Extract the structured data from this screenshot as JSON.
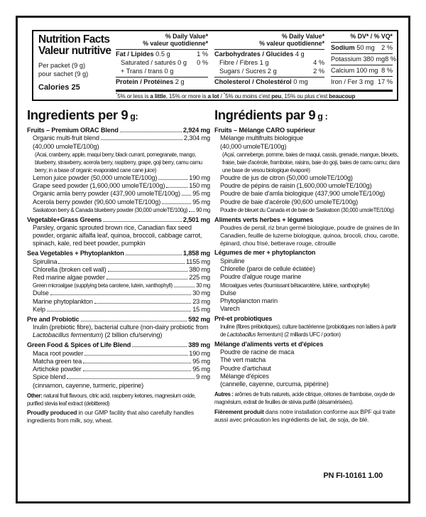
{
  "nutrition_facts": {
    "title_en": "Nutrition Facts",
    "title_fr": "Valeur nutritive",
    "serving_en": "Per packet (9 g)",
    "serving_fr": "pour sachet (9 g)",
    "calories": "Calories 25",
    "dv_header_line1": "% Daily Value*",
    "dv_header_line2": "% valeur quotidienne*",
    "dv_short_header": "% DV* / % VQ*",
    "fat_column": [
      {
        "b": "Fat / Lipides",
        "r": " 0.5 g",
        "v": "1 %"
      },
      {
        "r": "Saturated / saturés 0 g",
        "v": "0 %",
        "indent": 1
      },
      {
        "r": "+ Trans / trans 0 g",
        "indent": 1
      },
      {
        "rule": true
      },
      {
        "b": "Protein / Protéines",
        "r": " 2 g"
      }
    ],
    "carb_column": [
      {
        "b": "Carbohydrates / Glucides",
        "r": " 4 g"
      },
      {
        "r": "Fibre / Fibres 1 g",
        "v": "4 %",
        "indent": 1
      },
      {
        "r": "Sugars / Sucres 2 g",
        "v": "2 %",
        "indent": 1
      },
      {
        "rule": true
      },
      {
        "b": "Cholesterol / Cholestérol",
        "r": " 0 mg"
      }
    ],
    "mineral_column": [
      {
        "b": "Sodium",
        "r": " 50 mg",
        "v": "2 %"
      },
      {
        "rule": true
      },
      {
        "r": "Potassium 380 mg",
        "v": "8 %"
      },
      {
        "rule": true
      },
      {
        "r": "Calcium 100 mg",
        "v": "8 %"
      },
      {
        "rule": true
      },
      {
        "r": "Iron / Fer 3 mg",
        "v": "17 %"
      }
    ],
    "footnote_segments": [
      {
        "sup": true,
        "text": "*"
      },
      {
        "text": "5% or less is "
      },
      {
        "bold": true,
        "text": "a little"
      },
      {
        "text": ", 15% or more is "
      },
      {
        "bold": true,
        "text": "a lot"
      },
      {
        "text": " / "
      },
      {
        "sup": true,
        "text": "*"
      },
      {
        "text": "5% ou moins c'est "
      },
      {
        "bold": true,
        "text": "peu"
      },
      {
        "text": ", 15% ou plus c'est "
      },
      {
        "bold": true,
        "text": "beaucoup"
      }
    ]
  },
  "ingredients_en": {
    "title_prefix": "Ingredients per 9",
    "title_unit": "g:",
    "rows": [
      {
        "t": "dot",
        "bold": true,
        "label": "Fruits – Premium ORAC Blend",
        "value": "2,924 mg"
      },
      {
        "t": "dot",
        "indent": 1,
        "label": "Organic multi-fruit blend",
        "value": "2,304 mg"
      },
      {
        "t": "text",
        "indent": 1,
        "text": "(40,000 umoleTE/100g)"
      },
      {
        "t": "text",
        "indent": 2,
        "size": "xs",
        "text": "(Acai, cranberry, apple, maqui berry, black currant, pomegranate, mango, blueberry, strawberry, acerola berry, raspberry, grape, goji berry, camu camu berry; in a base of organic evaporated cane cane juice)"
      },
      {
        "t": "dot",
        "indent": 1,
        "label": "Lemon juice powder (50,000 umoleTE/100g)",
        "value": "190 mg"
      },
      {
        "t": "dot",
        "indent": 1,
        "label": "Grape seed powder (1,600,000 umoleTE/100g)",
        "value": "150 mg"
      },
      {
        "t": "dot",
        "indent": 1,
        "label": "Organic amla berry powder (437,900 umoleTE/100g)",
        "value": "95 mg"
      },
      {
        "t": "dot",
        "indent": 1,
        "label": "Acerola berry powder (90,600 umoleTE/100g)",
        "value": "95 mg"
      },
      {
        "t": "dot",
        "indent": 1,
        "size": "xs",
        "label": "Saskatoon berry & Canada blueberry powder (30,000 umoleTE/100g)",
        "value": "90 mg"
      },
      {
        "t": "dot",
        "bold": true,
        "gap": true,
        "label": "Vegetable+Grass Greens",
        "value": "2,501 mg"
      },
      {
        "t": "text",
        "indent": 1,
        "text": "Parsley, organic sprouted brown rice, Canadian flax seed powder, organic alfalfa leaf, quinoa, broccoli, cabbage carrot, spinach, kale, red beet powder, pumpkin"
      },
      {
        "t": "dot",
        "bold": true,
        "gap": true,
        "label": "Sea Vegetables + Phytoplankton",
        "value": "1,858 mg"
      },
      {
        "t": "dot",
        "indent": 1,
        "label": "Spirulina",
        "value": "1155 mg"
      },
      {
        "t": "dot",
        "indent": 1,
        "label": "Chlorella (broken cell wall)",
        "value": "380 mg"
      },
      {
        "t": "dot",
        "indent": 1,
        "label": "Red marine algae powder",
        "value": "225 mg"
      },
      {
        "t": "dot",
        "indent": 1,
        "size": "xs",
        "label": "Green microalgae (supplying beta carotene, lutein, xanthophyll)",
        "value": "30 mg"
      },
      {
        "t": "dot",
        "indent": 1,
        "label": "Dulse",
        "value": "30 mg"
      },
      {
        "t": "dot",
        "indent": 1,
        "label": "Marine phytoplankton",
        "value": "23 mg"
      },
      {
        "t": "dot",
        "indent": 1,
        "label": "Kelp",
        "value": "15 mg"
      },
      {
        "t": "dot",
        "bold": true,
        "gap": true,
        "label": "Pre and Probiotic",
        "value": "592 mg"
      },
      {
        "t": "seg",
        "indent": 1,
        "segments": [
          {
            "text": "Inulin (prebiotic fibre), bacterial culture (non-dairy probiotic from "
          },
          {
            "italic": true,
            "text": "Lactobacillus fermentum"
          },
          {
            "text": ") (2 billion cfu/serving)"
          }
        ]
      },
      {
        "t": "dot",
        "bold": true,
        "gap": true,
        "label": "Green Food & Spices of Life Blend",
        "value": "389 mg"
      },
      {
        "t": "dot",
        "indent": 1,
        "label": "Maca root powder",
        "value": "190 mg"
      },
      {
        "t": "dot",
        "indent": 1,
        "label": "Matcha green tea",
        "value": "95 mg"
      },
      {
        "t": "dot",
        "indent": 1,
        "label": "Artichoke powder",
        "value": "95 mg"
      },
      {
        "t": "dot",
        "indent": 1,
        "label": "Spice blend",
        "value": "9 mg"
      },
      {
        "t": "text",
        "indent": 1,
        "text": "(cinnamon, cayenne, turmeric, piperine)"
      },
      {
        "t": "lead",
        "gap": true,
        "size": "xs",
        "lead": "Other:",
        "text": " natural fruit flavours, citric acid, raspberry ketones, magnesium oxide, purified stevia leaf extract (debittered)"
      },
      {
        "t": "lead",
        "gap": true,
        "size": "s",
        "lead": "Proudly produced",
        "text": " in our GMP facility that also carefully handles ingredients from milk, soy, wheat."
      }
    ]
  },
  "ingredients_fr": {
    "title_prefix": "Ingrédients par 9",
    "title_unit": "g :",
    "rows": [
      {
        "t": "text",
        "bold": true,
        "text": "Fruits – Mélange CARO supérieur"
      },
      {
        "t": "text",
        "indent": 1,
        "text": "Mélange multifruits biologique"
      },
      {
        "t": "text",
        "indent": 1,
        "text": "(40,000 umoleTE/100g)"
      },
      {
        "t": "text",
        "indent": 2,
        "size": "xs",
        "text": "(Açaï, canneberge, pomme, baies de maqui, cassis, grenade, mangue, bleuets, fraise, baie d'acérole, framboise, raisins, baie do goji, baies de camu camu; dans une base de vesou biologique évaporé)"
      },
      {
        "t": "text",
        "indent": 1,
        "text": "Poudre de jus de citron (50,000 umoleTE/100g)"
      },
      {
        "t": "text",
        "indent": 1,
        "text": "Poudre de pépins de raisin (1,600,000 umoleTE/100g)"
      },
      {
        "t": "text",
        "indent": 1,
        "text": "Poudre de baie d'amla biologique (437,900 umoleTE/100g)"
      },
      {
        "t": "text",
        "indent": 1,
        "text": "Poudre de baie d'acérole (90,600 umoleTE/100g)"
      },
      {
        "t": "text",
        "indent": 1,
        "size": "xs",
        "text": "Poudre de bleuet du Canada et de baie de Saskatoon (30,000 umoleTE/100g)"
      },
      {
        "t": "text",
        "bold": true,
        "gap": true,
        "text": "Aliments verts herbes + légumes"
      },
      {
        "t": "text",
        "indent": 1,
        "size": "s",
        "text": "Poudres de persil, riz brun germé biologique, poudre de graines de lin Canadien, feuille de luzerne biologique, quinoa, brocoli, chou, carotte, épinard, chou frisé, betterave rouge, citrouille"
      },
      {
        "t": "text",
        "bold": true,
        "gap": true,
        "text": "Légumes de mer + phytoplancton"
      },
      {
        "t": "text",
        "indent": 1,
        "text": "Spiruline"
      },
      {
        "t": "text",
        "indent": 1,
        "text": "Chlorelle (paroi de cellule éclatée)"
      },
      {
        "t": "text",
        "indent": 1,
        "text": "Poudre d'algue rouge marine"
      },
      {
        "t": "text",
        "indent": 1,
        "size": "xs",
        "text": "Microalgues vertes (fournissant bêtacarotène, lutéine, xanthophylle)"
      },
      {
        "t": "text",
        "indent": 1,
        "text": "Dulse"
      },
      {
        "t": "text",
        "indent": 1,
        "text": "Phytoplancton marin"
      },
      {
        "t": "text",
        "indent": 1,
        "text": "Varech"
      },
      {
        "t": "text",
        "bold": true,
        "gap": true,
        "text": "Pré-et probiotiques"
      },
      {
        "t": "seg",
        "indent": 1,
        "size": "xs",
        "segments": [
          {
            "text": "Inuline (fibres prébiotiques), culture bactérienne (probiotiques non laitiers à partir de "
          },
          {
            "italic": true,
            "text": "Lactobacillus fermentum"
          },
          {
            "text": ") (2 milliards UFC / portion)"
          }
        ]
      },
      {
        "t": "text",
        "bold": true,
        "gap": true,
        "text": "Mélange d'aliments verts et d'épices"
      },
      {
        "t": "text",
        "indent": 1,
        "text": "Poudre de racine de maca"
      },
      {
        "t": "text",
        "indent": 1,
        "text": "Thé vert matcha"
      },
      {
        "t": "text",
        "indent": 1,
        "text": "Poudre d'artichaut"
      },
      {
        "t": "text",
        "indent": 1,
        "text": "Mélange d'épices"
      },
      {
        "t": "text",
        "indent": 1,
        "text": "(cannelle, cayenne, curcuma, pipérine)"
      },
      {
        "t": "lead",
        "gap": true,
        "size": "xs",
        "lead": "Autres :",
        "text": " arômes de fruits naturels, acide citrique, cétones de framboise, oxyde de magnésium, extrait de feuilles de stévia purifié (désamérisées)."
      },
      {
        "t": "lead",
        "gap": true,
        "size": "s",
        "lead": "Fièrement produit",
        "text": " dans notre installation conforme aux BPF qui traite aussi avec précaution les ingrédients de lait, de soja, de blé."
      }
    ]
  },
  "footer": {
    "part_number": "PN FI-10161 1.00"
  }
}
